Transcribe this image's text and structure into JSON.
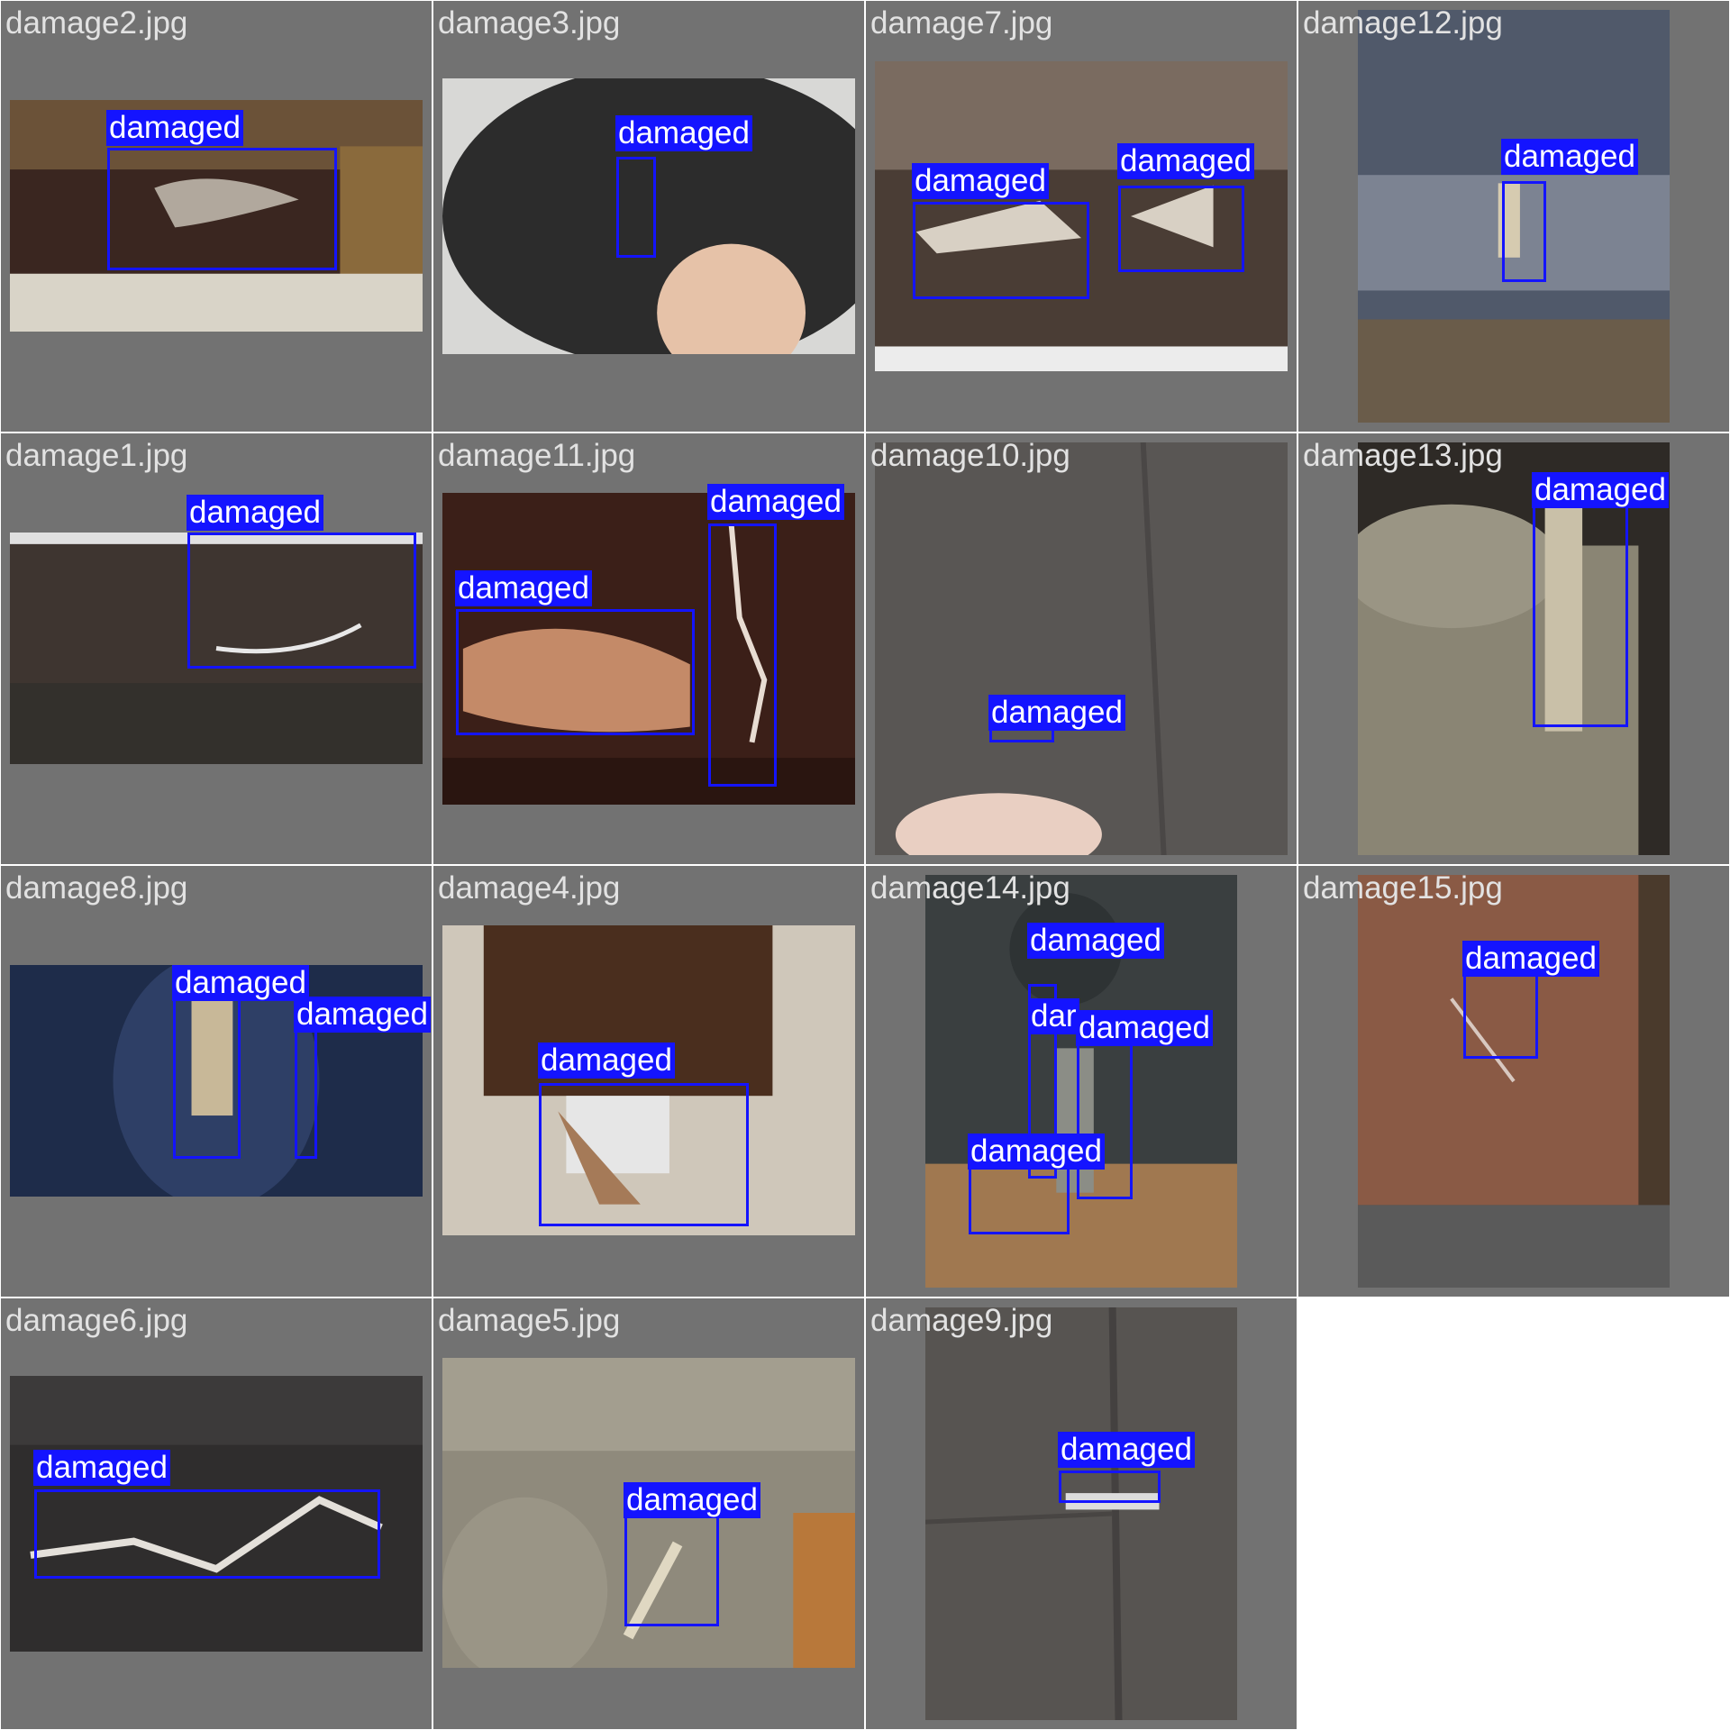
{
  "accent_colors": {
    "box": "#1414ff",
    "background": "#727272",
    "filename_text": "#e2e2e2"
  },
  "tiles": [
    {
      "file": "damage2.jpg",
      "photo": "leather-brown-couch",
      "detections": [
        {
          "label": "damaged"
        }
      ]
    },
    {
      "file": "damage3.jpg",
      "photo": "leather-black-arm",
      "detections": [
        {
          "label": "damaged"
        }
      ]
    },
    {
      "file": "damage7.jpg",
      "photo": "leather-peeling-seat",
      "detections": [
        {
          "label": "damaged"
        },
        {
          "label": "damaged"
        }
      ]
    },
    {
      "file": "damage12.jpg",
      "photo": "fabric-blue-cushion",
      "detections": [
        {
          "label": "damaged"
        }
      ]
    },
    {
      "file": "damage1.jpg",
      "photo": "sectional-stained",
      "detections": [
        {
          "label": "damaged"
        }
      ]
    },
    {
      "file": "damage11.jpg",
      "photo": "leather-cracked-arm",
      "detections": [
        {
          "label": "damaged"
        },
        {
          "label": "damaged"
        }
      ]
    },
    {
      "file": "damage10.jpg",
      "photo": "fabric-grey-seat",
      "detections": [
        {
          "label": "damaged"
        }
      ]
    },
    {
      "file": "damage13.jpg",
      "photo": "fabric-tan-arm",
      "detections": [
        {
          "label": "damaged"
        }
      ]
    },
    {
      "file": "damage8.jpg",
      "photo": "leather-navy-cushion",
      "detections": [
        {
          "label": "damaged"
        },
        {
          "label": "damaged"
        }
      ]
    },
    {
      "file": "damage4.jpg",
      "photo": "leather-ottoman",
      "detections": [
        {
          "label": "damaged"
        }
      ]
    },
    {
      "file": "damage14.jpg",
      "photo": "fabric-scratched-arm",
      "detections": [
        {
          "label": "damaged"
        },
        {
          "label": "dar"
        },
        {
          "label": "damaged"
        },
        {
          "label": "damaged"
        }
      ]
    },
    {
      "file": "damage15.jpg",
      "photo": "fabric-brown-arm",
      "detections": [
        {
          "label": "damaged"
        }
      ]
    },
    {
      "file": "damage6.jpg",
      "photo": "leather-black-seat",
      "detections": [
        {
          "label": "damaged"
        }
      ]
    },
    {
      "file": "damage5.jpg",
      "photo": "fabric-beige-couch",
      "detections": [
        {
          "label": "damaged"
        }
      ]
    },
    {
      "file": "damage9.jpg",
      "photo": "fabric-grey-cushion",
      "detections": [
        {
          "label": "damaged"
        }
      ]
    }
  ]
}
